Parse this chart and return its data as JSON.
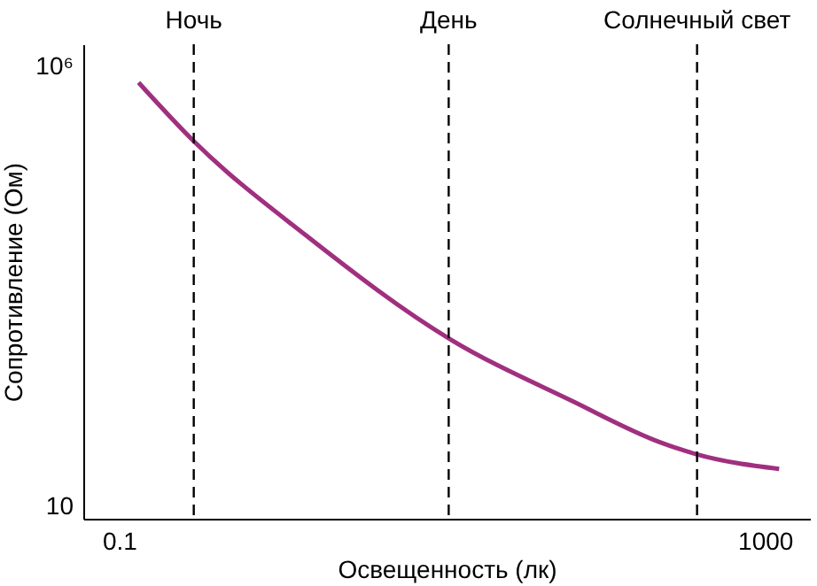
{
  "chart_data": {
    "type": "line",
    "xlabel": "Освещенность (лк)",
    "ylabel": "Сопротивление (Ом)",
    "x": [
      0.132,
      0.29,
      1.44,
      11.2,
      64,
      226,
      376,
      1225
    ],
    "series": [
      {
        "color": "#a0307f",
        "values": [
          660000,
          142000,
          12000,
          795,
          157,
          53,
          39,
          26.5
        ]
      }
    ],
    "log": "xy",
    "xlim": [
      0.06,
      1900
    ],
    "ylim": [
      7.2,
      1800000
    ],
    "xticks": [
      0.1,
      1000
    ],
    "yticks": [
      {
        "value": 10,
        "label": "10"
      },
      {
        "value": 1000000,
        "label": "10⁶"
      }
    ],
    "ref_lines": [
      {
        "axis": "x",
        "value": 0.29,
        "label": "Ночь",
        "color": "#000000",
        "line_style": "dashed"
      },
      {
        "axis": "x",
        "value": 11,
        "label": "День",
        "color": "#000000",
        "line_style": "dashed"
      },
      {
        "axis": "x",
        "value": 380,
        "label": "Солнечный свет",
        "color": "#000000",
        "line_style": "dashed"
      }
    ],
    "grid": false,
    "marker": "none",
    "line_style": "solid"
  }
}
